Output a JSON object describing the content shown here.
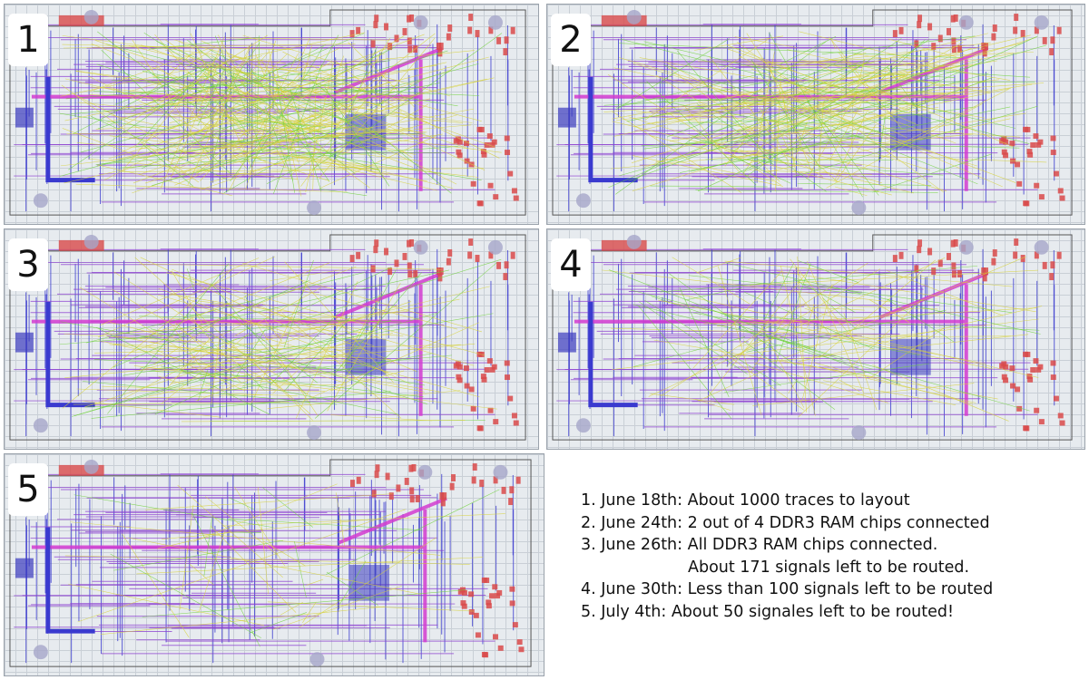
{
  "panels": [
    {
      "number": "1"
    },
    {
      "number": "2"
    },
    {
      "number": "3"
    },
    {
      "number": "4"
    },
    {
      "number": "5"
    }
  ],
  "notes": [
    "1. June 18th: About 1000 traces to layout",
    "2. June 24th: 2 out of 4 DDR3 RAM chips connected",
    "3. June 26th: All DDR3 RAM chips connected.",
    "About 171 signals left to be routed.",
    "4. June 30th: Less than 100 signals left to be routed",
    "5. July 4th: About 50 signales left to be routed!"
  ],
  "colors": {
    "background": "#ffffff",
    "board_grid": "#e7ebef",
    "trace_blue": "#3a3acf",
    "trace_purple": "#8c3fd1",
    "trace_magenta": "#d23bd0",
    "ratsnest_yellow": "#d7d23a",
    "ratsnest_green": "#6fd23a",
    "pad_red": "#d94a4a"
  },
  "unrouted_density": [
    1.0,
    0.8,
    0.55,
    0.4,
    0.2
  ]
}
